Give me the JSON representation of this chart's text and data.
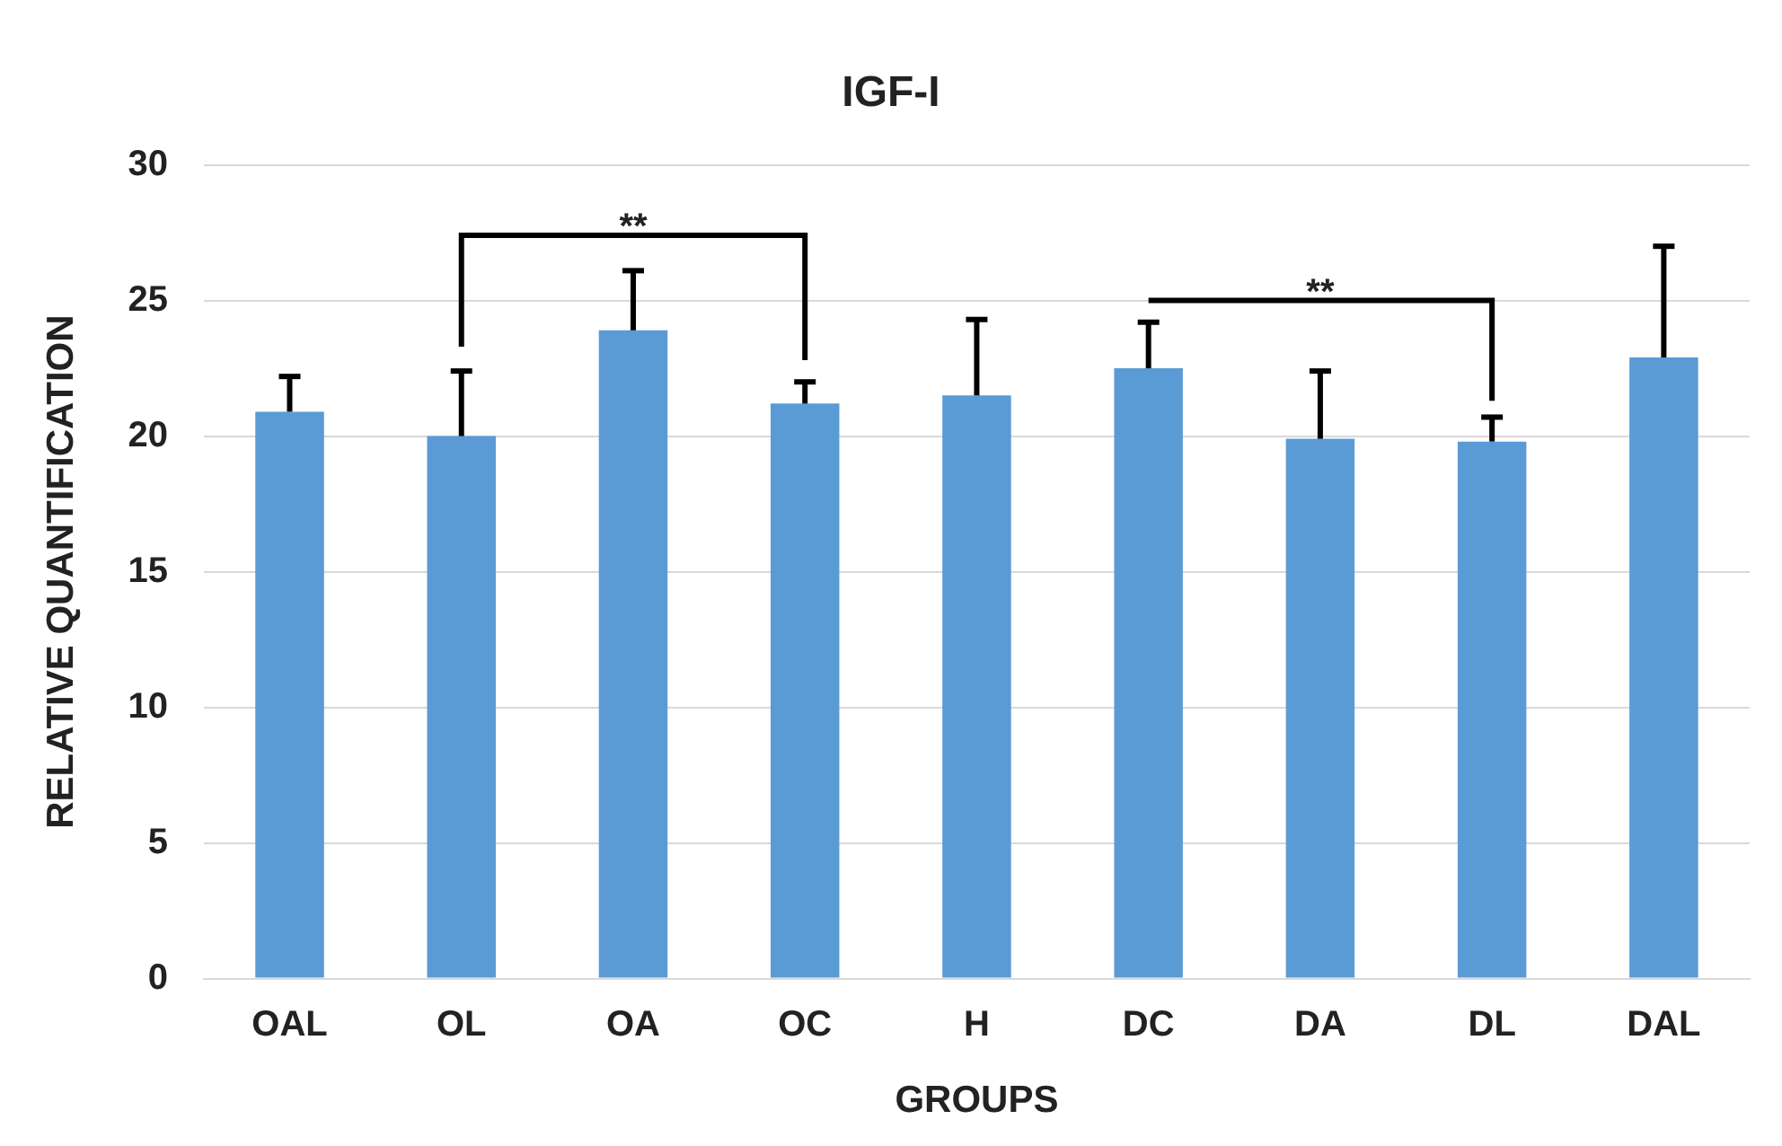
{
  "chart_data": {
    "type": "bar",
    "title": "IGF-I",
    "xlabel": "GROUPS",
    "ylabel": "RELATIVE QUANTIFICATION",
    "categories": [
      "OAL",
      "OL",
      "OA",
      "OC",
      "H",
      "DC",
      "DA",
      "DL",
      "DAL"
    ],
    "values": [
      20.9,
      20.0,
      23.9,
      21.2,
      21.5,
      22.5,
      19.9,
      19.8,
      22.9
    ],
    "errors": [
      [
        20.9,
        22.2
      ],
      [
        20.0,
        22.4
      ],
      [
        23.9,
        26.1
      ],
      [
        21.2,
        22.0
      ],
      [
        21.5,
        24.3
      ],
      [
        22.5,
        24.2
      ],
      [
        19.9,
        22.4
      ],
      [
        19.8,
        20.7
      ],
      [
        22.9,
        27.0
      ]
    ],
    "color": "#5b9bd5",
    "ylim": [
      0,
      30
    ],
    "yticks": [
      0,
      5,
      10,
      15,
      20,
      25,
      30
    ],
    "grid": "y",
    "legend": false,
    "annotations": [
      "**",
      "**"
    ]
  }
}
